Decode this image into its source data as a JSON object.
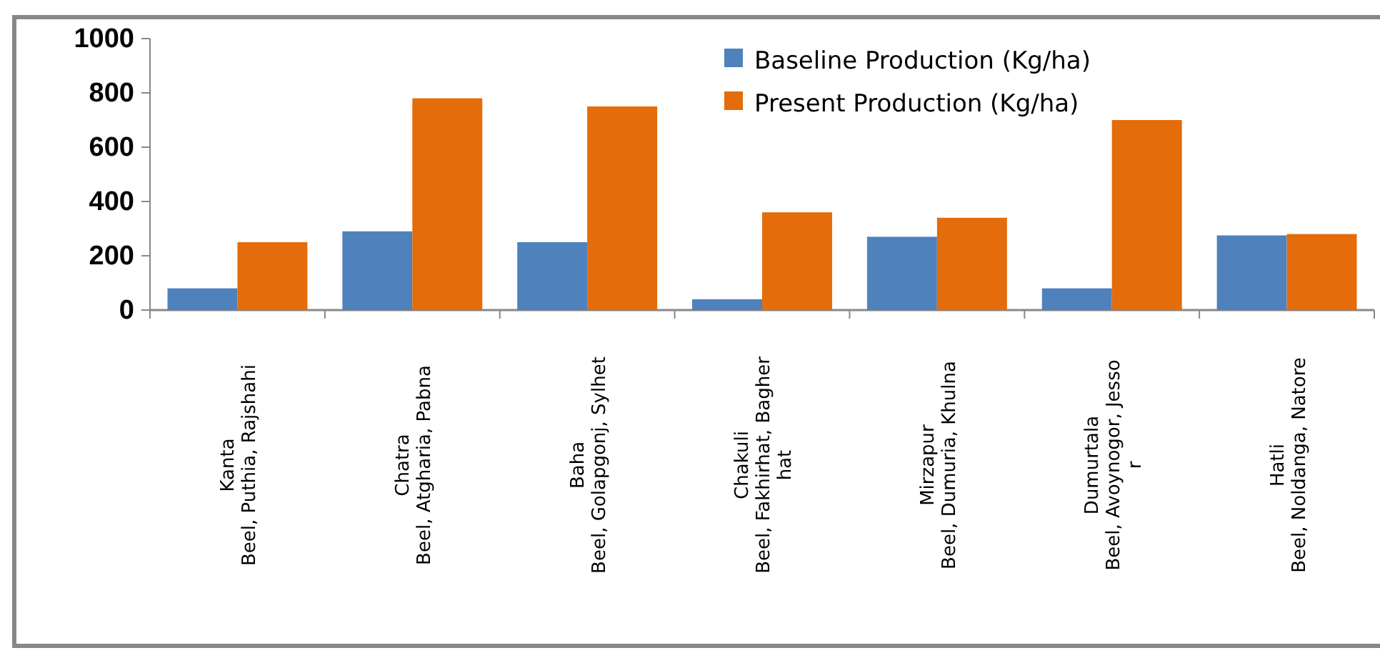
{
  "chart_data": {
    "type": "bar",
    "categories": [
      "Kanta\nBeel, Puthia, Rajshahi",
      "Chatra\nBeel, Atgharia, Pabna",
      "Baha\nBeel, Golapgonj, Sylhet",
      "Chakuli\nBeel, Fakhirhat, Bagher\nhat",
      "Mirzapur\nBeel, Dumuria, Khulna",
      "Dumurtala\nBeel, Avoynogor, Jesso\nr",
      "Hatli\nBeel, Noldanga, Natore"
    ],
    "series": [
      {
        "name": "Baseline Production (Kg/ha)",
        "color": "#4f81bd",
        "values": [
          80,
          290,
          250,
          40,
          270,
          80,
          275
        ]
      },
      {
        "name": "Present Production (Kg/ha)",
        "color": "#e46c0a",
        "values": [
          250,
          780,
          750,
          360,
          340,
          700,
          280
        ]
      }
    ],
    "ylim": [
      0,
      1000
    ],
    "yticks": [
      0,
      200,
      400,
      600,
      800,
      1000
    ],
    "grid": false,
    "legend": "top right"
  }
}
